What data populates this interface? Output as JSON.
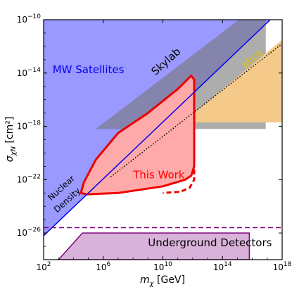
{
  "chart_data": {
    "type": "area",
    "xlabel": "m_χ [GeV]",
    "ylabel": "σ_χN [cm²]",
    "xscale": "log",
    "yscale": "log",
    "xlim_exp": [
      2,
      18
    ],
    "ylim_exp": [
      -28,
      -10
    ],
    "x_ticks": [
      {
        "exp": 2,
        "label": "10",
        "sup": "2"
      },
      {
        "exp": 6,
        "label": "10",
        "sup": "6"
      },
      {
        "exp": 10,
        "label": "10",
        "sup": "10"
      },
      {
        "exp": 14,
        "label": "10",
        "sup": "14"
      },
      {
        "exp": 18,
        "label": "10",
        "sup": "18"
      }
    ],
    "y_ticks": [
      {
        "exp": -10,
        "label": "10",
        "sup": "−10"
      },
      {
        "exp": -14,
        "label": "10",
        "sup": "−14"
      },
      {
        "exp": -18,
        "label": "10",
        "sup": "−18"
      },
      {
        "exp": -22,
        "label": "10",
        "sup": "−22"
      },
      {
        "exp": -26,
        "label": "10",
        "sup": "−26"
      }
    ],
    "regions": [
      {
        "name": "MW Satellites",
        "label_color": "#0000ee",
        "fill": "#9999ff",
        "polygon_log10": [
          [
            2,
            -10
          ],
          [
            17.2,
            -10
          ],
          [
            2,
            -26.2
          ]
        ]
      },
      {
        "name": "Skylab",
        "label_color": "#000000",
        "fill": "#777777",
        "polygon_log10": [
          [
            5.5,
            -18.2
          ],
          [
            15.1,
            -10.0
          ],
          [
            16.9,
            -10.0
          ],
          [
            16.9,
            -18.2
          ]
        ]
      },
      {
        "name": "Mica",
        "label_color": "#e8c000",
        "fill": "#f5c98a",
        "polygon_log10": [
          [
            11.0,
            -18.0
          ],
          [
            18,
            -11.5
          ],
          [
            18,
            -17.7
          ],
          [
            11.0,
            -17.7
          ]
        ]
      },
      {
        "name": "This Work",
        "label_color": "#ff0000",
        "fill": "#ffaaaa",
        "stroke": "#ee0000",
        "polygon_log10": [
          [
            4.5,
            -23.0
          ],
          [
            4.9,
            -23.1
          ],
          [
            7.0,
            -23.0
          ],
          [
            10.0,
            -22.5
          ],
          [
            11.5,
            -22.0
          ],
          [
            11.9,
            -21.7
          ],
          [
            12.1,
            -21.0
          ],
          [
            12.1,
            -14.5
          ],
          [
            11.9,
            -14.2
          ],
          [
            11.0,
            -15.2
          ],
          [
            9.0,
            -17.0
          ],
          [
            7.0,
            -18.5
          ],
          [
            5.5,
            -20.5
          ],
          [
            4.7,
            -22.2
          ]
        ]
      },
      {
        "name": "Underground Detectors",
        "label_color": "#000000",
        "fill": "#d8b2d8",
        "stroke": "#800080",
        "polygon_log10": [
          [
            3.0,
            -28.0
          ],
          [
            4.6,
            -26.0
          ],
          [
            15.8,
            -26.0
          ],
          [
            15.8,
            -28.0
          ]
        ]
      }
    ],
    "lines": [
      {
        "name": "Nuclear Density",
        "color": "#0000ee",
        "style": "solid",
        "points_log10": [
          [
            2,
            -26.2
          ],
          [
            17.2,
            -10.0
          ]
        ]
      },
      {
        "name": "",
        "color": "#000000",
        "style": "dotted",
        "points_log10": [
          [
            6.5,
            -21.8
          ],
          [
            18,
            -11.8
          ]
        ]
      },
      {
        "name": "",
        "color": "#800080",
        "style": "dashed",
        "points_log10": [
          [
            2,
            -25.6
          ],
          [
            18,
            -25.6
          ]
        ]
      },
      {
        "name": "",
        "color": "#ee0000",
        "style": "dashed",
        "points_log10": [
          [
            12.1,
            -16.0
          ],
          [
            12.1,
            -22.0
          ],
          [
            11.8,
            -22.6
          ],
          [
            11.2,
            -22.9
          ],
          [
            10.0,
            -23.0
          ]
        ]
      }
    ],
    "annotations": [
      {
        "text": "MW Satellites",
        "color": "#0000ee",
        "at_log10": [
          2.6,
          -14.0
        ],
        "rotation": 0,
        "size": 15
      },
      {
        "text": "Skylab",
        "color": "#000000",
        "at_log10": [
          9.5,
          -14.2
        ],
        "rotation": -42,
        "size": 15
      },
      {
        "text": "Mica",
        "color": "#e8c000",
        "at_log10": [
          15.6,
          -13.7
        ],
        "rotation": -42,
        "size": 14
      },
      {
        "text": "This Work",
        "color": "#ff0000",
        "at_log10": [
          8.0,
          -21.9
        ],
        "rotation": 0,
        "size": 15
      },
      {
        "text": "Nuclear",
        "color": "#000000",
        "at_log10": [
          2.5,
          -23.6
        ],
        "rotation": -42,
        "size": 12
      },
      {
        "text": "Density",
        "color": "#000000",
        "at_log10": [
          2.9,
          -24.5
        ],
        "rotation": -42,
        "size": 12
      },
      {
        "text": "Underground Detectors",
        "color": "#000000",
        "at_log10": [
          9.0,
          -27.0
        ],
        "rotation": 0,
        "size": 15
      }
    ]
  }
}
